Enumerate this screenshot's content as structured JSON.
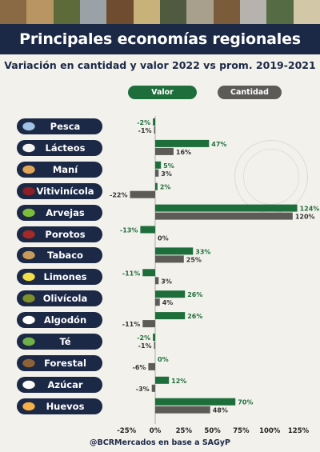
{
  "header": {
    "title": "Principales economías regionales",
    "subtitle": "Variación en cantidad y valor 2022 vs prom. 2019-2021",
    "source": "@BCRMercados en base a SAGyP"
  },
  "colors": {
    "valor": "#1e6e3b",
    "cantidad": "#5c5b58",
    "navy": "#1b2846"
  },
  "chart_data": {
    "type": "bar",
    "orientation": "horizontal",
    "categories": [
      "Pesca",
      "Lácteos",
      "Maní",
      "Vitivinícola",
      "Arvejas",
      "Porotos",
      "Tabaco",
      "Limones",
      "Olivícola",
      "Algodón",
      "Té",
      "Forestal",
      "Azúcar",
      "Huevos"
    ],
    "icons": [
      "fish-icon",
      "milk-bottle-icon",
      "peanut-icon",
      "wine-glass-icon",
      "pea-pod-icon",
      "beans-icon",
      "tobacco-leaf-icon",
      "lemon-icon",
      "olive-icon",
      "cotton-icon",
      "tea-cup-icon",
      "log-icon",
      "sugar-icon",
      "egg-icon"
    ],
    "series": [
      {
        "name": "Valor",
        "values": [
          -2,
          47,
          5,
          2,
          124,
          -13,
          33,
          -11,
          26,
          26,
          -2,
          0,
          12,
          70
        ]
      },
      {
        "name": "Cantidad",
        "values": [
          -1,
          16,
          3,
          -22,
          120,
          0,
          25,
          3,
          4,
          -11,
          -1,
          -6,
          -3,
          48
        ]
      }
    ],
    "value_labels": {
      "Valor": [
        "-2%",
        "47%",
        "5%",
        "2%",
        "124%",
        "-13%",
        "33%",
        "-11%",
        "26%",
        "26%",
        "-2%",
        "0%",
        "12%",
        "70%"
      ],
      "Cantidad": [
        "-1%",
        "16%",
        "3%",
        "-22%",
        "120%",
        "0%",
        "25%",
        "3%",
        "4%",
        "-11%",
        "-1%",
        "-6%",
        "-3%",
        "48%"
      ]
    },
    "xlim": [
      -25,
      125
    ],
    "xticks": [
      -25,
      0,
      25,
      50,
      75,
      100,
      125
    ],
    "xtick_labels": [
      "-25%",
      "0%",
      "25%",
      "50%",
      "75%",
      "100%",
      "125%"
    ],
    "legend_position": "top"
  }
}
